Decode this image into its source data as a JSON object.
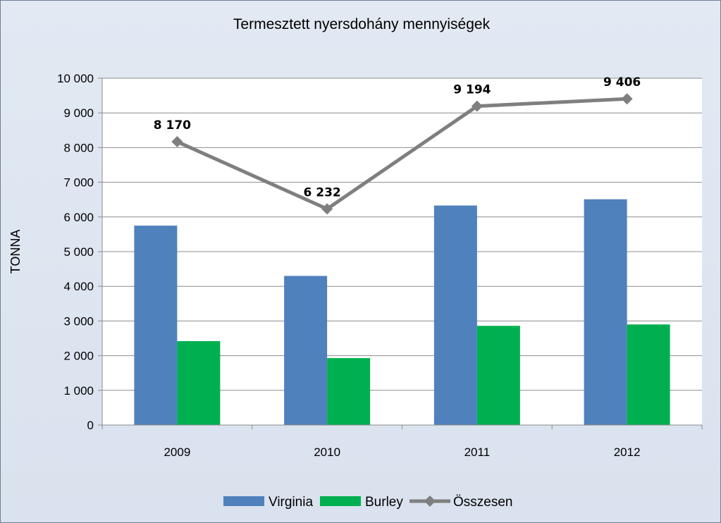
{
  "chart_data": {
    "type": "bar",
    "title": "Termesztett nyersdohány mennyiségek",
    "ylabel": "TONNA",
    "xlabel": "",
    "categories": [
      "2009",
      "2010",
      "2011",
      "2012"
    ],
    "ylim": [
      0,
      10000
    ],
    "yticks": [
      {
        "value": 0,
        "label": "0"
      },
      {
        "value": 1000,
        "label": "1 000"
      },
      {
        "value": 2000,
        "label": "2 000"
      },
      {
        "value": 3000,
        "label": "3 000"
      },
      {
        "value": 4000,
        "label": "4 000"
      },
      {
        "value": 5000,
        "label": "5 000"
      },
      {
        "value": 6000,
        "label": "6 000"
      },
      {
        "value": 7000,
        "label": "7 000"
      },
      {
        "value": 8000,
        "label": "8 000"
      },
      {
        "value": 9000,
        "label": "9 000"
      },
      {
        "value": 10000,
        "label": "10 000"
      }
    ],
    "grid": true,
    "legend": "bottom",
    "series": [
      {
        "name": "Virginia",
        "kind": "bar",
        "color": "#4f81bd",
        "values": [
          5750,
          4300,
          6330,
          6510
        ]
      },
      {
        "name": "Burley",
        "kind": "bar",
        "color": "#00b050",
        "values": [
          2420,
          1930,
          2860,
          2900
        ]
      },
      {
        "name": "Összesen",
        "kind": "line",
        "color": "#7f7f7f",
        "marker": "diamond",
        "values": [
          8170,
          6232,
          9194,
          9406
        ],
        "labels": [
          "8 170",
          "6 232",
          "9 194",
          "9 406"
        ]
      }
    ]
  }
}
